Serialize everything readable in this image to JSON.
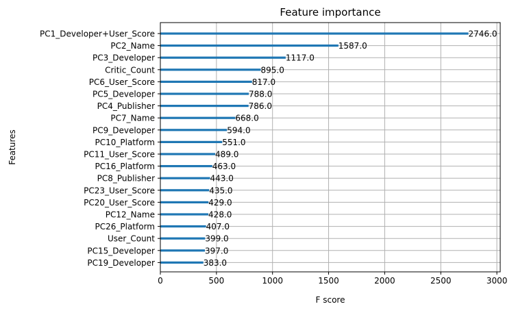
{
  "chart_data": {
    "type": "bar",
    "orientation": "horizontal",
    "title": "Feature importance",
    "xlabel": "F score",
    "ylabel": "Features",
    "xlim": [
      0,
      3030
    ],
    "xticks": [
      0,
      500,
      1000,
      1500,
      2000,
      2500,
      3000
    ],
    "grid": true,
    "categories": [
      "PC1_Developer+User_Score",
      "PC2_Name",
      "PC3_Developer",
      "Critic_Count",
      "PC6_User_Score",
      "PC5_Developer",
      "PC4_Publisher",
      "PC7_Name",
      "PC9_Developer",
      "PC10_Platform",
      "PC11_User_Score",
      "PC16_Platform",
      "PC8_Publisher",
      "PC23_User_Score",
      "PC20_User_Score",
      "PC12_Name",
      "PC26_Platform",
      "User_Count",
      "PC15_Developer",
      "PC19_Developer"
    ],
    "values": [
      2746.0,
      1587.0,
      1117.0,
      895.0,
      817.0,
      788.0,
      786.0,
      668.0,
      594.0,
      551.0,
      489.0,
      463.0,
      443.0,
      435.0,
      429.0,
      428.0,
      407.0,
      399.0,
      397.0,
      383.0
    ],
    "data_labels": [
      "2746.0",
      "1587.0",
      "1117.0",
      "895.0",
      "817.0",
      "788.0",
      "786.0",
      "668.0",
      "594.0",
      "551.0",
      "489.0",
      "463.0",
      "443.0",
      "435.0",
      "429.0",
      "428.0",
      "407.0",
      "399.0",
      "397.0",
      "383.0"
    ],
    "colors": {
      "bar": "#1f77b4",
      "grid": "#b0b0b0",
      "axis": "#000000"
    }
  }
}
